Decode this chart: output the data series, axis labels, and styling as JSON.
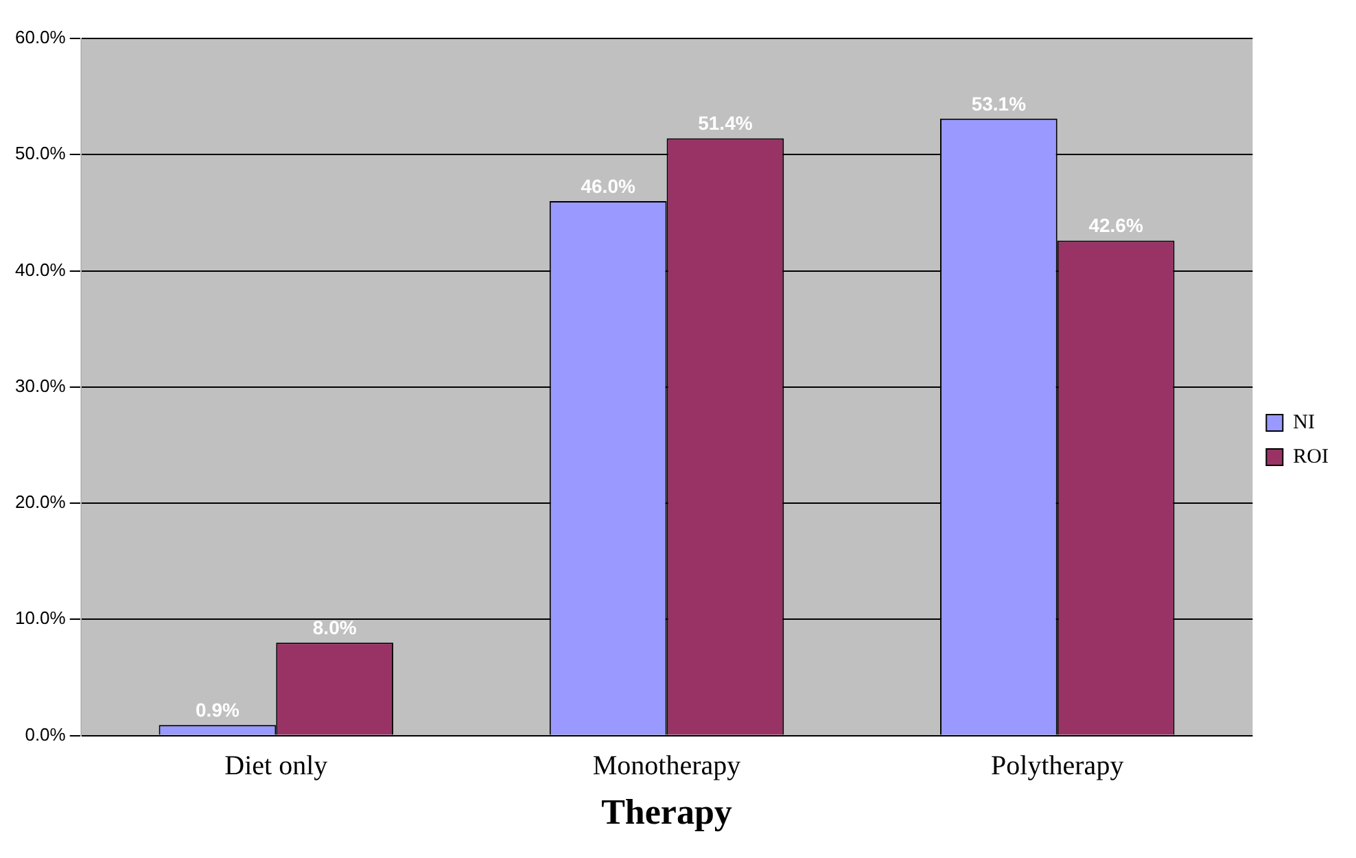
{
  "chart_data": {
    "type": "bar",
    "xlabel": "Therapy",
    "categories": [
      "Diet only",
      "Monotherapy",
      "Polytherapy"
    ],
    "series": [
      {
        "name": "NI",
        "color": "#9999ff",
        "values": [
          0.9,
          46.0,
          53.1
        ],
        "value_labels": [
          "0.9%",
          "46.0%",
          "53.1%"
        ]
      },
      {
        "name": "ROI",
        "color": "#993366",
        "values": [
          8.0,
          51.4,
          42.6
        ],
        "value_labels": [
          "8.0%",
          "51.4%",
          "42.6%"
        ]
      }
    ],
    "ylim": [
      0,
      60
    ],
    "yticks": [
      {
        "value": 0,
        "label": "0.0%"
      },
      {
        "value": 10,
        "label": "10.0%"
      },
      {
        "value": 20,
        "label": "20.0%"
      },
      {
        "value": 30,
        "label": "30.0%"
      },
      {
        "value": 40,
        "label": "40.0%"
      },
      {
        "value": 50,
        "label": "50.0%"
      },
      {
        "value": 60,
        "label": "60.0%"
      }
    ],
    "grid": "y",
    "legend": "right"
  }
}
